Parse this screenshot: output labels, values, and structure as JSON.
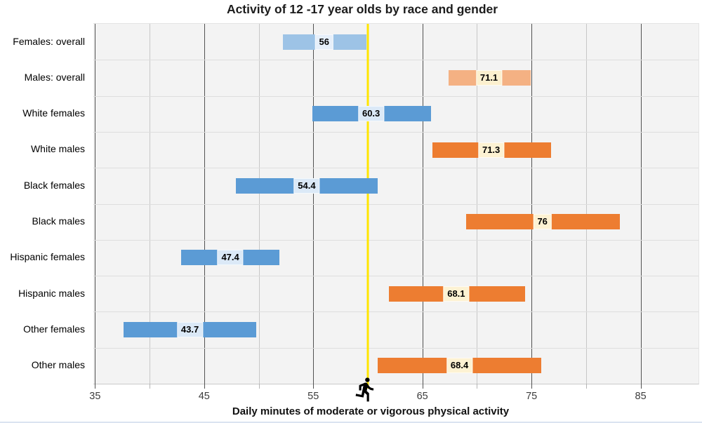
{
  "chart_data": {
    "type": "bar",
    "subtype": "horizontal-range-bars",
    "title": "Activity of 12 -17 year olds by race and gender",
    "xlabel": "Daily minutes of moderate or vigorous physical activity",
    "ylabel": "",
    "xlim": [
      34.85,
      90.3
    ],
    "grid": true,
    "x_major_ticks": [
      35,
      45,
      55,
      65,
      75,
      85
    ],
    "x_minor_ticks": [
      40,
      50,
      60,
      70,
      80
    ],
    "reference_line": {
      "value": 60,
      "color": "#ffe600",
      "icon": "runner-icon"
    },
    "plot_bg": "#f3f3f3",
    "palette": {
      "female_light": {
        "bar": "#9dc3e6",
        "chip": "#e6effa"
      },
      "male_light": {
        "bar": "#f4b183",
        "chip": "#fcf0cf"
      },
      "female": {
        "bar": "#5b9bd5",
        "chip": "#dbe9f7"
      },
      "male": {
        "bar": "#ed7d31",
        "chip": "#fdf2d3"
      }
    },
    "categories": [
      "Females: overall",
      "Males: overall",
      "White females",
      "White males",
      "Black females",
      "Black males",
      "Hispanic females",
      "Hispanic males",
      "Other females",
      "Other males"
    ],
    "rows": [
      {
        "category": "Females: overall",
        "palette": "female_light",
        "low": 52.2,
        "high": 59.9,
        "value": 56,
        "label": "56"
      },
      {
        "category": "Males: overall",
        "palette": "male_light",
        "low": 67.4,
        "high": 74.9,
        "value": 71.1,
        "label": "71.1"
      },
      {
        "category": "White females",
        "palette": "female",
        "low": 54.9,
        "high": 65.8,
        "value": 60.3,
        "label": "60.3"
      },
      {
        "category": "White males",
        "palette": "male",
        "low": 65.9,
        "high": 76.8,
        "value": 71.3,
        "label": "71.3"
      },
      {
        "category": "Black females",
        "palette": "female",
        "low": 47.9,
        "high": 60.9,
        "value": 54.4,
        "label": "54.4"
      },
      {
        "category": "Black males",
        "palette": "male",
        "low": 69.0,
        "high": 83.1,
        "value": 76,
        "label": "76"
      },
      {
        "category": "Hispanic females",
        "palette": "female",
        "low": 42.9,
        "high": 51.9,
        "value": 47.4,
        "label": "47.4"
      },
      {
        "category": "Hispanic males",
        "palette": "male",
        "low": 61.9,
        "high": 74.4,
        "value": 68.1,
        "label": "68.1"
      },
      {
        "category": "Other females",
        "palette": "female",
        "low": 37.6,
        "high": 49.8,
        "value": 43.7,
        "label": "43.7"
      },
      {
        "category": "Other males",
        "palette": "male",
        "low": 60.9,
        "high": 75.9,
        "value": 68.4,
        "label": "68.4"
      }
    ]
  }
}
